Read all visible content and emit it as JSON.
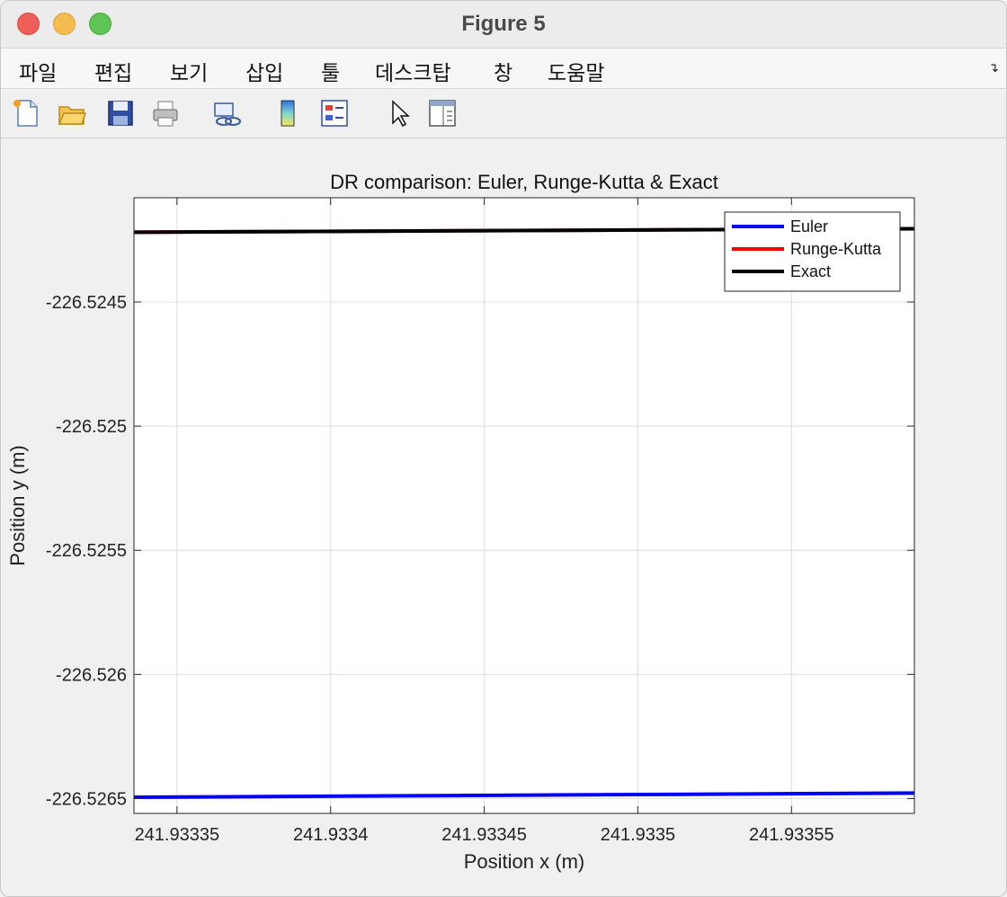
{
  "window": {
    "title": "Figure 5",
    "colors": {
      "close": "#ee5f57",
      "minimize": "#f5bd4f",
      "maximize": "#5fc456"
    }
  },
  "menubar": {
    "items": [
      "파일",
      "편집",
      "보기",
      "삽입",
      "툴",
      "데스크탑",
      "창",
      "도움말"
    ],
    "corner_icon": "dock-arrow-icon"
  },
  "toolbar": {
    "buttons": [
      {
        "icon": "new-figure-icon"
      },
      {
        "icon": "open-file-icon"
      },
      {
        "icon": "save-icon"
      },
      {
        "icon": "print-icon"
      },
      {
        "icon": "link-plot-icon"
      },
      {
        "icon": "colorbar-icon"
      },
      {
        "icon": "legend-icon"
      },
      {
        "icon": "edit-plot-pointer-icon"
      },
      {
        "icon": "property-inspector-icon"
      }
    ]
  },
  "chart_data": {
    "type": "line",
    "title": "DR comparison: Euler, Runge-Kutta & Exact",
    "xlabel": "Position x (m)",
    "ylabel": "Position y (m)",
    "xlim": [
      241.933336,
      241.93359
    ],
    "ylim": [
      -226.52656,
      -226.52408
    ],
    "xticks": [
      241.93335,
      241.9334,
      241.93345,
      241.9335,
      241.93355
    ],
    "xtick_labels": [
      "241.93335",
      "241.9334",
      "241.93345",
      "241.9335",
      "241.93355"
    ],
    "yticks": [
      -226.5245,
      -226.525,
      -226.5255,
      -226.526,
      -226.5265
    ],
    "ytick_labels": [
      "-226.5245",
      "-226.525",
      "-226.5255",
      "-226.526",
      "-226.5265"
    ],
    "grid": true,
    "legend_position": "top-right",
    "series": [
      {
        "name": "Euler",
        "color": "#0000ff",
        "x": [
          241.933336,
          241.93359
        ],
        "y": [
          -226.526495,
          -226.526478
        ]
      },
      {
        "name": "Runge-Kutta",
        "color": "#ff0000",
        "x": [
          241.933336,
          241.93359
        ],
        "y": [
          -226.524219,
          -226.524205
        ]
      },
      {
        "name": "Exact",
        "color": "#000000",
        "x": [
          241.933336,
          241.93359
        ],
        "y": [
          -226.524219,
          -226.524205
        ]
      }
    ]
  }
}
